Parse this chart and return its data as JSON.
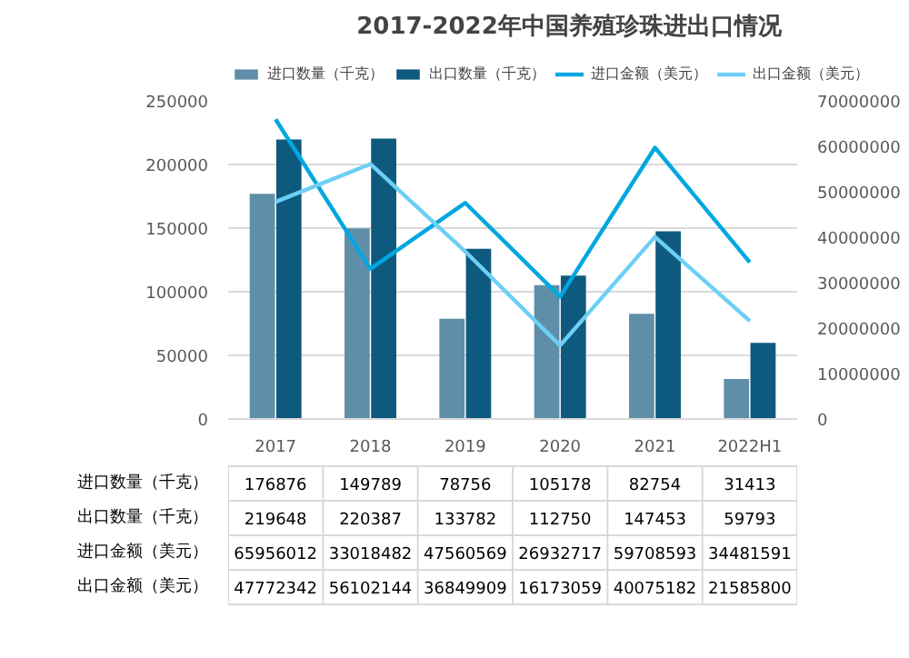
{
  "chart_data": {
    "type": "bar",
    "title": "2017-2022年中国养殖珍珠进出口情况",
    "categories": [
      "2017",
      "2018",
      "2019",
      "2020",
      "2021",
      "2022H1"
    ],
    "series": [
      {
        "name": "进口数量（千克）",
        "color": "#5f8fa8",
        "values": [
          176876,
          149789,
          78756,
          105178,
          82754,
          31413
        ]
      },
      {
        "name": "出口数量（千克）",
        "color": "#0e5a7e",
        "values": [
          219648,
          220387,
          133782,
          112750,
          147453,
          59793
        ]
      },
      {
        "name": "进口金额（美元）",
        "color": "#00a7e0",
        "type": "line",
        "axis": "y2",
        "values": [
          65956012,
          33018482,
          47560569,
          26932717,
          59708593,
          34481591
        ]
      },
      {
        "name": "出口金额（美元）",
        "color": "#6dcff6",
        "type": "line",
        "axis": "y2",
        "values": [
          47772342,
          56102144,
          36849909,
          16173059,
          40075182,
          21585800
        ]
      }
    ],
    "ylim": [
      0,
      250000
    ],
    "yticks": [
      0,
      50000,
      100000,
      150000,
      200000,
      250000
    ],
    "y2lim": [
      0,
      70000000
    ],
    "y2ticks": [
      0,
      10000000,
      20000000,
      30000000,
      40000000,
      50000000,
      60000000,
      70000000
    ],
    "grid": "y",
    "legend": "top",
    "data_labels": true
  }
}
